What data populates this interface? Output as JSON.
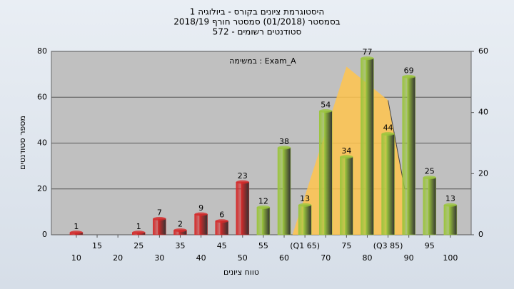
{
  "chart_data": {
    "type": "bar",
    "title": [
      "היסטוגרמת ציונים בקורס - ביולוגיה 1",
      "בסמסטר  (01/2018)  סמסטר חורף 2018/19",
      "סטודנטים רשומים - 572"
    ],
    "annotation": "במשימה : Exam_A",
    "x_label": "טווח ציונים",
    "y_label": "מספר סטודנטים",
    "x": [
      10,
      15,
      20,
      25,
      30,
      35,
      40,
      45,
      50,
      55,
      60,
      65,
      70,
      75,
      80,
      85,
      90,
      95,
      100
    ],
    "values": [
      1,
      null,
      null,
      1,
      7,
      2,
      9,
      6,
      23,
      12,
      38,
      13,
      54,
      34,
      77,
      44,
      69,
      25,
      13
    ],
    "colors": [
      "#d42a2a",
      null,
      null,
      "#d42a2a",
      "#d42a2a",
      "#d42a2a",
      "#d42a2a",
      "#d42a2a",
      "#d42a2a",
      "#9bc53d",
      "#9bc53d",
      "#9bc53d",
      "#9bc53d",
      "#9bc53d",
      "#9bc53d",
      "#9bc53d",
      "#9bc53d",
      "#9bc53d",
      "#9bc53d"
    ],
    "xlim": [
      4,
      105
    ],
    "xticks": [
      10,
      15,
      20,
      25,
      30,
      35,
      40,
      45,
      50,
      55,
      60,
      {
        "value": 65,
        "label": "(Q1 65)"
      },
      70,
      75,
      80,
      {
        "value": 85,
        "label": "(Q3 85)"
      },
      90,
      95,
      100
    ],
    "ylim": [
      0,
      80
    ],
    "yticks": [
      0,
      20,
      40,
      60,
      80
    ],
    "y2lim": [
      0,
      60
    ],
    "y2ticks": [
      0,
      20,
      40,
      60
    ],
    "area": {
      "x": [
        62,
        75,
        85,
        89
      ],
      "values": [
        0,
        55,
        44,
        15
      ],
      "axis": "y2",
      "color": "#ffc44d"
    },
    "grid": true
  }
}
